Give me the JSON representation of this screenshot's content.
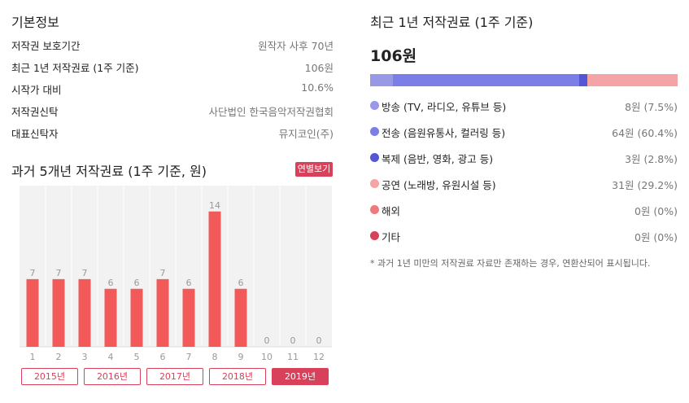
{
  "basic_info": {
    "title": "기본정보",
    "rows": [
      {
        "label": "저작권 보호기간",
        "value": "원작자 사후 70년"
      },
      {
        "label": "최근 1년 저작권료 (1주 기준)",
        "value": "106원"
      },
      {
        "label": "시작가 대비",
        "value": "10.6%"
      },
      {
        "label": "저작권신탁",
        "value": "사단법인 한국음악저작권협회"
      },
      {
        "label": "대표신탁자",
        "value": "뮤지코인(주)"
      }
    ]
  },
  "history": {
    "title": "과거 5개년 저작권료 (1주 기준, 원)",
    "annual_button": "연별보기",
    "year_buttons": [
      "2015년",
      "2016년",
      "2017년",
      "2018년",
      "2019년"
    ],
    "active_year": "2019년"
  },
  "chart_data": {
    "type": "bar",
    "categories": [
      "1",
      "2",
      "3",
      "4",
      "5",
      "6",
      "7",
      "8",
      "9",
      "10",
      "11",
      "12"
    ],
    "values": [
      7,
      7,
      7,
      6,
      6,
      7,
      6,
      14,
      6,
      0,
      0,
      0
    ],
    "ylim": [
      0,
      16
    ],
    "bar_color": "#f25a5a",
    "grid": true,
    "title": "",
    "xlabel": "",
    "ylabel": ""
  },
  "recent": {
    "title": "최근 1년 저작권료 (1주 기준)",
    "total": "106원",
    "breakdown": [
      {
        "label": "방송 (TV, 라디오, 유튜브 등)",
        "value": "8원 (7.5%)",
        "percent": 7.5,
        "color": "#9898e6"
      },
      {
        "label": "전송 (음원유통사, 컬러링 등)",
        "value": "64원 (60.4%)",
        "percent": 60.4,
        "color": "#7a7ee6"
      },
      {
        "label": "복제 (음반, 영화, 광고 등)",
        "value": "3원 (2.8%)",
        "percent": 2.8,
        "color": "#5456d6"
      },
      {
        "label": "공연 (노래방, 유원시설 등)",
        "value": "31원 (29.2%)",
        "percent": 29.2,
        "color": "#f4a4a4"
      },
      {
        "label": "해외",
        "value": "0원 (0%)",
        "percent": 0,
        "color": "#f07a7a"
      },
      {
        "label": "기타",
        "value": "0원 (0%)",
        "percent": 0,
        "color": "#d9405a"
      }
    ],
    "note": "* 과거 1년 미만의 저작권료 자료만 존재하는 경우, 연환산되어 표시됩니다."
  }
}
